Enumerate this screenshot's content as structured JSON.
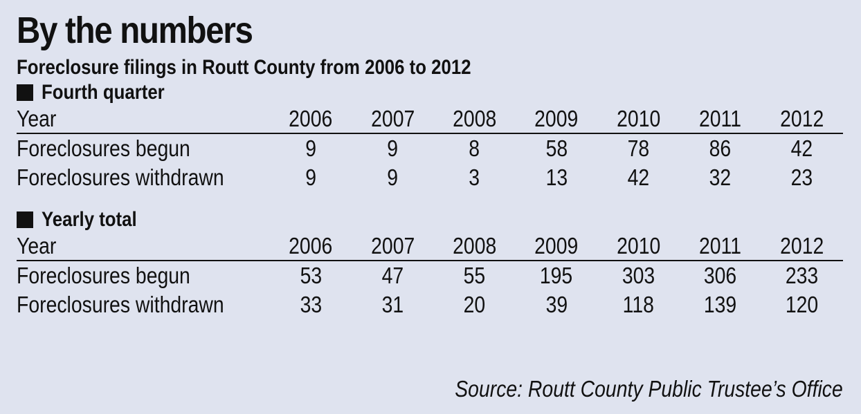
{
  "chart_data": {
    "type": "table",
    "title": "By the numbers",
    "subtitle": "Foreclosure filings in Routt County from 2006 to 2012",
    "row_header_label": "Year",
    "years": [
      "2006",
      "2007",
      "2008",
      "2009",
      "2010",
      "2011",
      "2012"
    ],
    "sections": [
      {
        "heading": "Fourth quarter",
        "rows": [
          {
            "label": "Foreclosures begun",
            "values": [
              "9",
              "9",
              "8",
              "58",
              "78",
              "86",
              "42"
            ]
          },
          {
            "label": "Foreclosures withdrawn",
            "values": [
              "9",
              "9",
              "3",
              "13",
              "42",
              "32",
              "23"
            ]
          }
        ]
      },
      {
        "heading": "Yearly total",
        "rows": [
          {
            "label": "Foreclosures begun",
            "values": [
              "53",
              "47",
              "55",
              "195",
              "303",
              "306",
              "233"
            ]
          },
          {
            "label": "Foreclosures withdrawn",
            "values": [
              "33",
              "31",
              "20",
              "39",
              "118",
              "139",
              "120"
            ]
          }
        ]
      }
    ],
    "source": "Source: Routt County Public Trustee’s Office"
  },
  "colors": {
    "background": "#dfe3ef",
    "text": "#111111"
  }
}
